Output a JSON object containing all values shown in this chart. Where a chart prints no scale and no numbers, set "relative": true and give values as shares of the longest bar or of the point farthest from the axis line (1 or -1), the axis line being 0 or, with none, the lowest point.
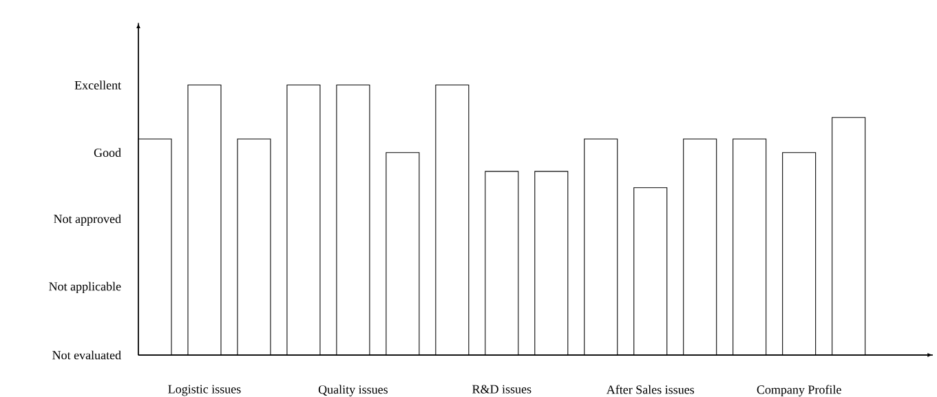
{
  "chart_data": {
    "type": "bar",
    "categories": [
      null,
      "Logistic issues",
      null,
      null,
      "Quality issues",
      null,
      null,
      "R&D issues",
      null,
      null,
      "After Sales issues",
      null,
      null,
      "Company Profile",
      null
    ],
    "values": [
      0.8,
      1,
      0.8,
      1,
      1,
      0.75,
      1,
      0.68,
      0.68,
      0.8,
      0.62,
      0.8,
      0.8,
      0.75,
      0.88
    ],
    "color": "#ffffff",
    "relative": true,
    "annotations": [
      "Not evaluated",
      "Not applicable",
      "Not approved",
      "Good",
      "Excellent"
    ]
  }
}
